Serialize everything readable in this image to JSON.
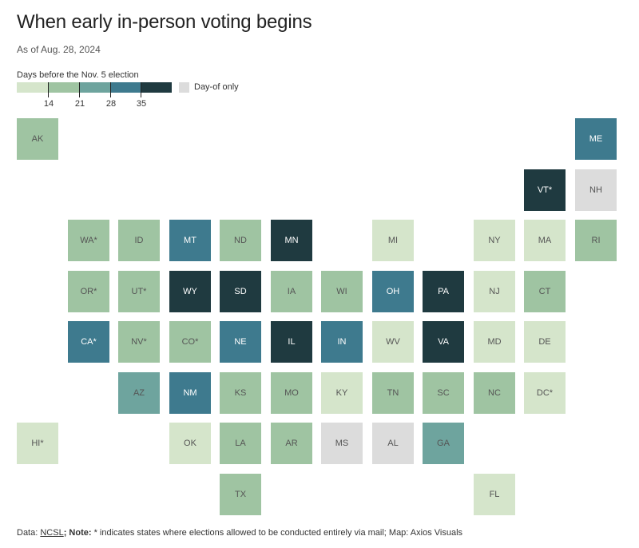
{
  "header": {
    "title": "When early in-person voting begins",
    "subtitle": "As of Aug. 28, 2024"
  },
  "legend": {
    "label": "Days before the Nov. 5 election",
    "ticks": [
      "14",
      "21",
      "28",
      "35"
    ],
    "dayof_label": "Day-of only",
    "colors": [
      "#d5e5cb",
      "#9fc4a2",
      "#6ea49e",
      "#3e7a8e",
      "#1f3a40"
    ],
    "dayof_color": "#dcdcdc"
  },
  "footer": {
    "data_prefix": "Data: ",
    "source": "NCSL",
    "note_prefix": "; Note: ",
    "note": "* indicates states where elections allowed to be conducted entirely via mail; Map: Axios Visuals"
  },
  "states": [
    {
      "label": "AK",
      "col": 0,
      "row": 0,
      "level": 1
    },
    {
      "label": "ME",
      "col": 11,
      "row": 0,
      "level": 3
    },
    {
      "label": "VT*",
      "col": 10,
      "row": 1,
      "level": 4
    },
    {
      "label": "NH",
      "col": 11,
      "row": 1,
      "level": -1
    },
    {
      "label": "WA*",
      "col": 1,
      "row": 2,
      "level": 1
    },
    {
      "label": "ID",
      "col": 2,
      "row": 2,
      "level": 1
    },
    {
      "label": "MT",
      "col": 3,
      "row": 2,
      "level": 3
    },
    {
      "label": "ND",
      "col": 4,
      "row": 2,
      "level": 1
    },
    {
      "label": "MN",
      "col": 5,
      "row": 2,
      "level": 4
    },
    {
      "label": "MI",
      "col": 7,
      "row": 2,
      "level": 0
    },
    {
      "label": "NY",
      "col": 9,
      "row": 2,
      "level": 0
    },
    {
      "label": "MA",
      "col": 10,
      "row": 2,
      "level": 0
    },
    {
      "label": "RI",
      "col": 11,
      "row": 2,
      "level": 1
    },
    {
      "label": "OR*",
      "col": 1,
      "row": 3,
      "level": 1
    },
    {
      "label": "UT*",
      "col": 2,
      "row": 3,
      "level": 1
    },
    {
      "label": "WY",
      "col": 3,
      "row": 3,
      "level": 4
    },
    {
      "label": "SD",
      "col": 4,
      "row": 3,
      "level": 4
    },
    {
      "label": "IA",
      "col": 5,
      "row": 3,
      "level": 1
    },
    {
      "label": "WI",
      "col": 6,
      "row": 3,
      "level": 1
    },
    {
      "label": "OH",
      "col": 7,
      "row": 3,
      "level": 3
    },
    {
      "label": "PA",
      "col": 8,
      "row": 3,
      "level": 4
    },
    {
      "label": "NJ",
      "col": 9,
      "row": 3,
      "level": 0
    },
    {
      "label": "CT",
      "col": 10,
      "row": 3,
      "level": 1
    },
    {
      "label": "CA*",
      "col": 1,
      "row": 4,
      "level": 3
    },
    {
      "label": "NV*",
      "col": 2,
      "row": 4,
      "level": 1
    },
    {
      "label": "CO*",
      "col": 3,
      "row": 4,
      "level": 1
    },
    {
      "label": "NE",
      "col": 4,
      "row": 4,
      "level": 3
    },
    {
      "label": "IL",
      "col": 5,
      "row": 4,
      "level": 4
    },
    {
      "label": "IN",
      "col": 6,
      "row": 4,
      "level": 3
    },
    {
      "label": "WV",
      "col": 7,
      "row": 4,
      "level": 0
    },
    {
      "label": "VA",
      "col": 8,
      "row": 4,
      "level": 4
    },
    {
      "label": "MD",
      "col": 9,
      "row": 4,
      "level": 0
    },
    {
      "label": "DE",
      "col": 10,
      "row": 4,
      "level": 0
    },
    {
      "label": "AZ",
      "col": 2,
      "row": 5,
      "level": 2
    },
    {
      "label": "NM",
      "col": 3,
      "row": 5,
      "level": 3
    },
    {
      "label": "KS",
      "col": 4,
      "row": 5,
      "level": 1
    },
    {
      "label": "MO",
      "col": 5,
      "row": 5,
      "level": 1
    },
    {
      "label": "KY",
      "col": 6,
      "row": 5,
      "level": 0
    },
    {
      "label": "TN",
      "col": 7,
      "row": 5,
      "level": 1
    },
    {
      "label": "SC",
      "col": 8,
      "row": 5,
      "level": 1
    },
    {
      "label": "NC",
      "col": 9,
      "row": 5,
      "level": 1
    },
    {
      "label": "DC*",
      "col": 10,
      "row": 5,
      "level": 0
    },
    {
      "label": "HI*",
      "col": 0,
      "row": 6,
      "level": 0
    },
    {
      "label": "OK",
      "col": 3,
      "row": 6,
      "level": 0
    },
    {
      "label": "LA",
      "col": 4,
      "row": 6,
      "level": 1
    },
    {
      "label": "AR",
      "col": 5,
      "row": 6,
      "level": 1
    },
    {
      "label": "MS",
      "col": 6,
      "row": 6,
      "level": -1
    },
    {
      "label": "AL",
      "col": 7,
      "row": 6,
      "level": -1
    },
    {
      "label": "GA",
      "col": 8,
      "row": 6,
      "level": 2
    },
    {
      "label": "TX",
      "col": 4,
      "row": 7,
      "level": 1
    },
    {
      "label": "FL",
      "col": 9,
      "row": 7,
      "level": 0
    }
  ]
}
